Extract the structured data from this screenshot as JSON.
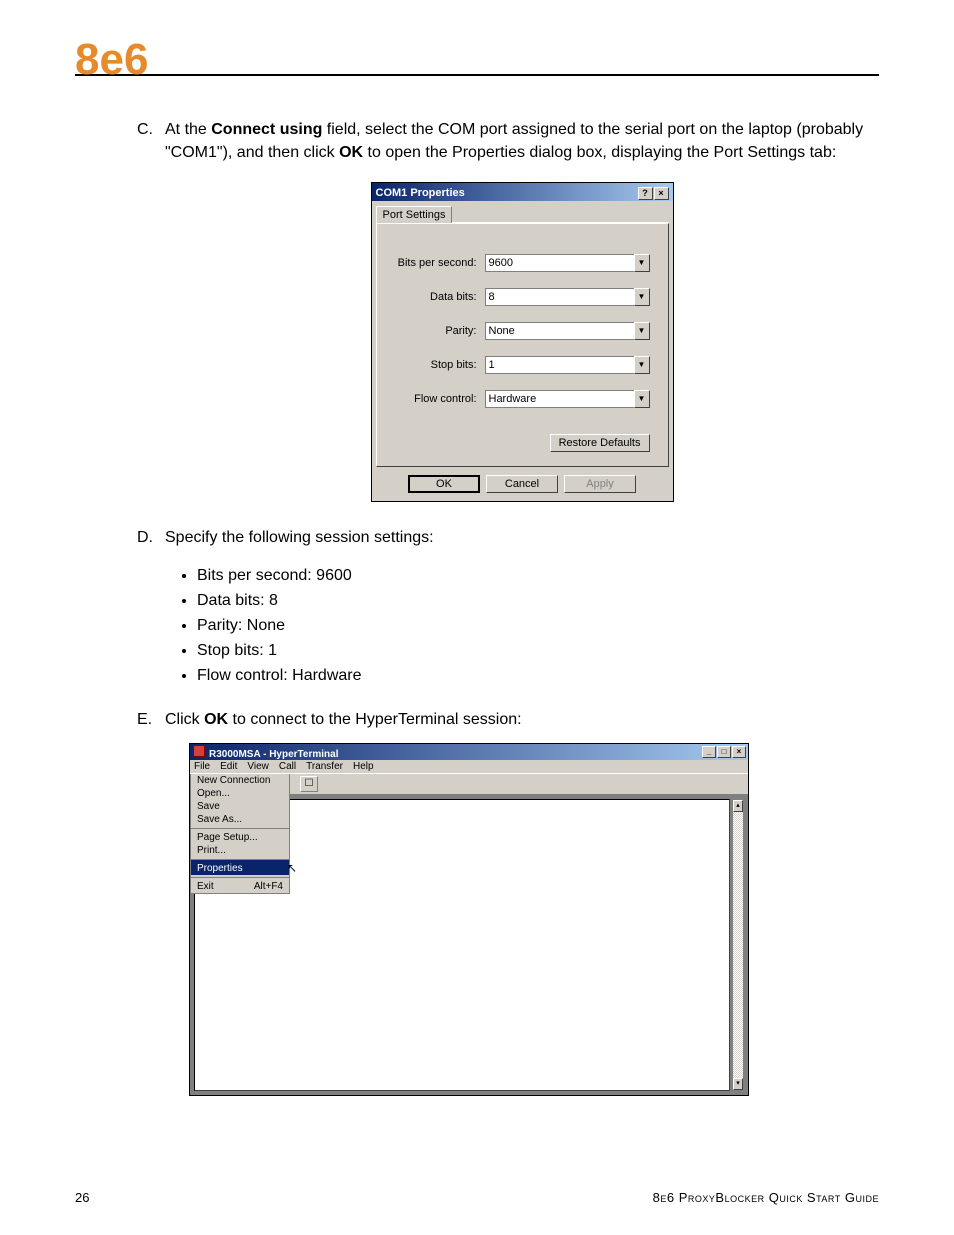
{
  "logo": "8e6",
  "steps": {
    "c": {
      "letter": "C.",
      "pre": "At the ",
      "bold1": "Connect using",
      "mid": " field, select the COM port assigned to the serial port on the laptop (probably \"COM1\"), and then click ",
      "bold2": "OK",
      "post": " to open the Properties dialog box, displaying the Port Settings tab:"
    },
    "d": {
      "letter": "D.",
      "text": "Specify the following session settings:"
    },
    "e": {
      "letter": "E.",
      "pre": "Click ",
      "bold": "OK",
      "post": " to connect to the HyperTerminal session:"
    }
  },
  "bullets": [
    "Bits per second: 9600",
    "Data bits: 8",
    "Parity: None",
    "Stop bits: 1",
    "Flow control: Hardware"
  ],
  "com1": {
    "title": "COM1 Properties",
    "help": "?",
    "close": "×",
    "tab": "Port Settings",
    "fields": {
      "bps": {
        "label": "Bits per second:",
        "value": "9600"
      },
      "databits": {
        "label": "Data bits:",
        "value": "8"
      },
      "parity": {
        "label": "Parity:",
        "value": "None"
      },
      "stopbits": {
        "label": "Stop bits:",
        "value": "1"
      },
      "flow": {
        "label": "Flow control:",
        "value": "Hardware"
      }
    },
    "restore": "Restore Defaults",
    "ok": "OK",
    "cancel": "Cancel",
    "apply": "Apply"
  },
  "ht": {
    "title": "R3000MSA - HyperTerminal",
    "min": "_",
    "max": "□",
    "close": "×",
    "menus": [
      "File",
      "Edit",
      "View",
      "Call",
      "Transfer",
      "Help"
    ],
    "dropdown": [
      {
        "label": "New Connection",
        "shortcut": ""
      },
      {
        "label": "Open...",
        "shortcut": ""
      },
      {
        "label": "Save",
        "shortcut": ""
      },
      {
        "label": "Save As...",
        "shortcut": ""
      },
      {
        "label": "Page Setup...",
        "shortcut": "",
        "sep": true
      },
      {
        "label": "Print...",
        "shortcut": ""
      },
      {
        "label": "Properties",
        "shortcut": "",
        "sep": true,
        "sel": true
      },
      {
        "label": "Exit",
        "shortcut": "Alt+F4",
        "sep": true
      }
    ],
    "toolbar_icon": "☐",
    "scroll_up": "▴",
    "scroll_down": "▾"
  },
  "footer": {
    "page": "26",
    "title": "8e6 ProxyBlocker Quick Start Guide"
  },
  "colors": {
    "brand": "#e68a2e",
    "win_face": "#d4d0c8",
    "win_title_left": "#0a246a",
    "win_title_right": "#a6caf0"
  }
}
